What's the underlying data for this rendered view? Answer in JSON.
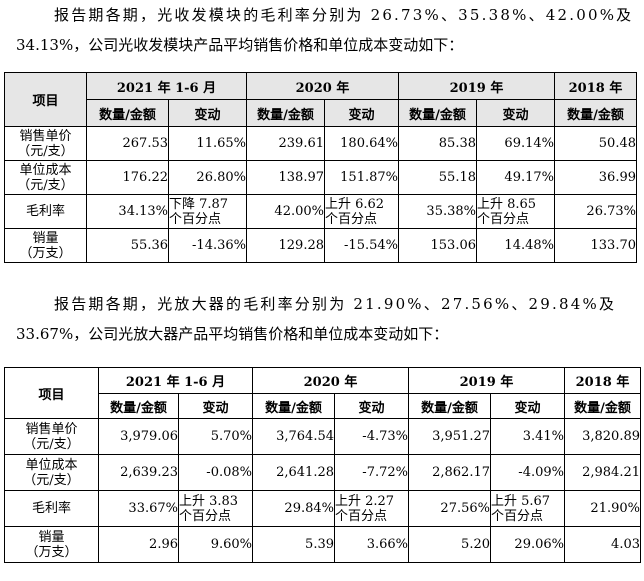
{
  "paragraph1": {
    "line1": "报告期各期，光收发模块的毛利率分别为 26.73%、35.38%、42.00%及",
    "line2": "34.13%，公司光收发模块产品平均销售价格和单位成本变动如下："
  },
  "paragraph2": {
    "line1": "报告期各期，光放大器的毛利率分别为 21.90%、27.56%、29.84%及",
    "line2": "33.67%，公司光放大器产品平均销售价格和单位成本变动如下："
  },
  "table1": {
    "item_header": "项目",
    "periods": [
      "2021 年 1-6 月",
      "2020 年",
      "2019 年",
      "2018 年"
    ],
    "col_amount": "数量/金额",
    "col_change": "变动",
    "rows": [
      {
        "label_a": "销售单价",
        "label_b": "（元/支）",
        "v2021": "267.53",
        "c2021": "11.65%",
        "v2020": "239.61",
        "c2020": "180.64%",
        "v2019": "85.38",
        "c2019": "69.14%",
        "v2018": "50.48"
      },
      {
        "label_a": "单位成本",
        "label_b": "（元/支）",
        "v2021": "176.22",
        "c2021": "26.80%",
        "v2020": "138.97",
        "c2020": "151.87%",
        "v2019": "55.18",
        "c2019": "49.17%",
        "v2018": "36.99"
      },
      {
        "label_a": "毛利率",
        "label_b": "",
        "v2021": "34.13%",
        "c2021a": "下降 7.87",
        "c2021b": "个百分点",
        "v2020": "42.00%",
        "c2020a": "上升 6.62",
        "c2020b": "个百分点",
        "v2019": "35.38%",
        "c2019a": "上升 8.65",
        "c2019b": "个百分点",
        "v2018": "26.73%"
      },
      {
        "label_a": "销量",
        "label_b": "（万支）",
        "v2021": "55.36",
        "c2021": "-14.36%",
        "v2020": "129.28",
        "c2020": "-15.54%",
        "v2019": "153.06",
        "c2019": "14.48%",
        "v2018": "133.70"
      }
    ]
  },
  "table2": {
    "item_header": "项目",
    "periods": [
      "2021 年 1-6 月",
      "2020 年",
      "2019 年",
      "2018 年"
    ],
    "col_amount": "数量/金额",
    "col_change": "变动",
    "rows": [
      {
        "label_a": "销售单价",
        "label_b": "（元/支）",
        "v2021": "3,979.06",
        "c2021": "5.70%",
        "v2020": "3,764.54",
        "c2020": "-4.73%",
        "v2019": "3,951.27",
        "c2019": "3.41%",
        "v2018": "3,820.89"
      },
      {
        "label_a": "单位成本",
        "label_b": "（元/支）",
        "v2021": "2,639.23",
        "c2021": "-0.08%",
        "v2020": "2,641.28",
        "c2020": "-7.72%",
        "v2019": "2,862.17",
        "c2019": "-4.09%",
        "v2018": "2,984.21"
      },
      {
        "label_a": "毛利率",
        "label_b": "",
        "v2021": "33.67%",
        "c2021a": "上升 3.83",
        "c2021b": "个百分点",
        "v2020": "29.84%",
        "c2020a": "上升 2.27",
        "c2020b": "个百分点",
        "v2019": "27.56%",
        "c2019a": "上升 5.67",
        "c2019b": "个百分点",
        "v2018": "21.90%"
      },
      {
        "label_a": "销量",
        "label_b": "（万支）",
        "v2021": "2.96",
        "c2021": "9.60%",
        "v2020": "5.39",
        "c2020": "3.66%",
        "v2019": "5.20",
        "c2019": "29.06%",
        "v2018": "4.03"
      }
    ]
  }
}
